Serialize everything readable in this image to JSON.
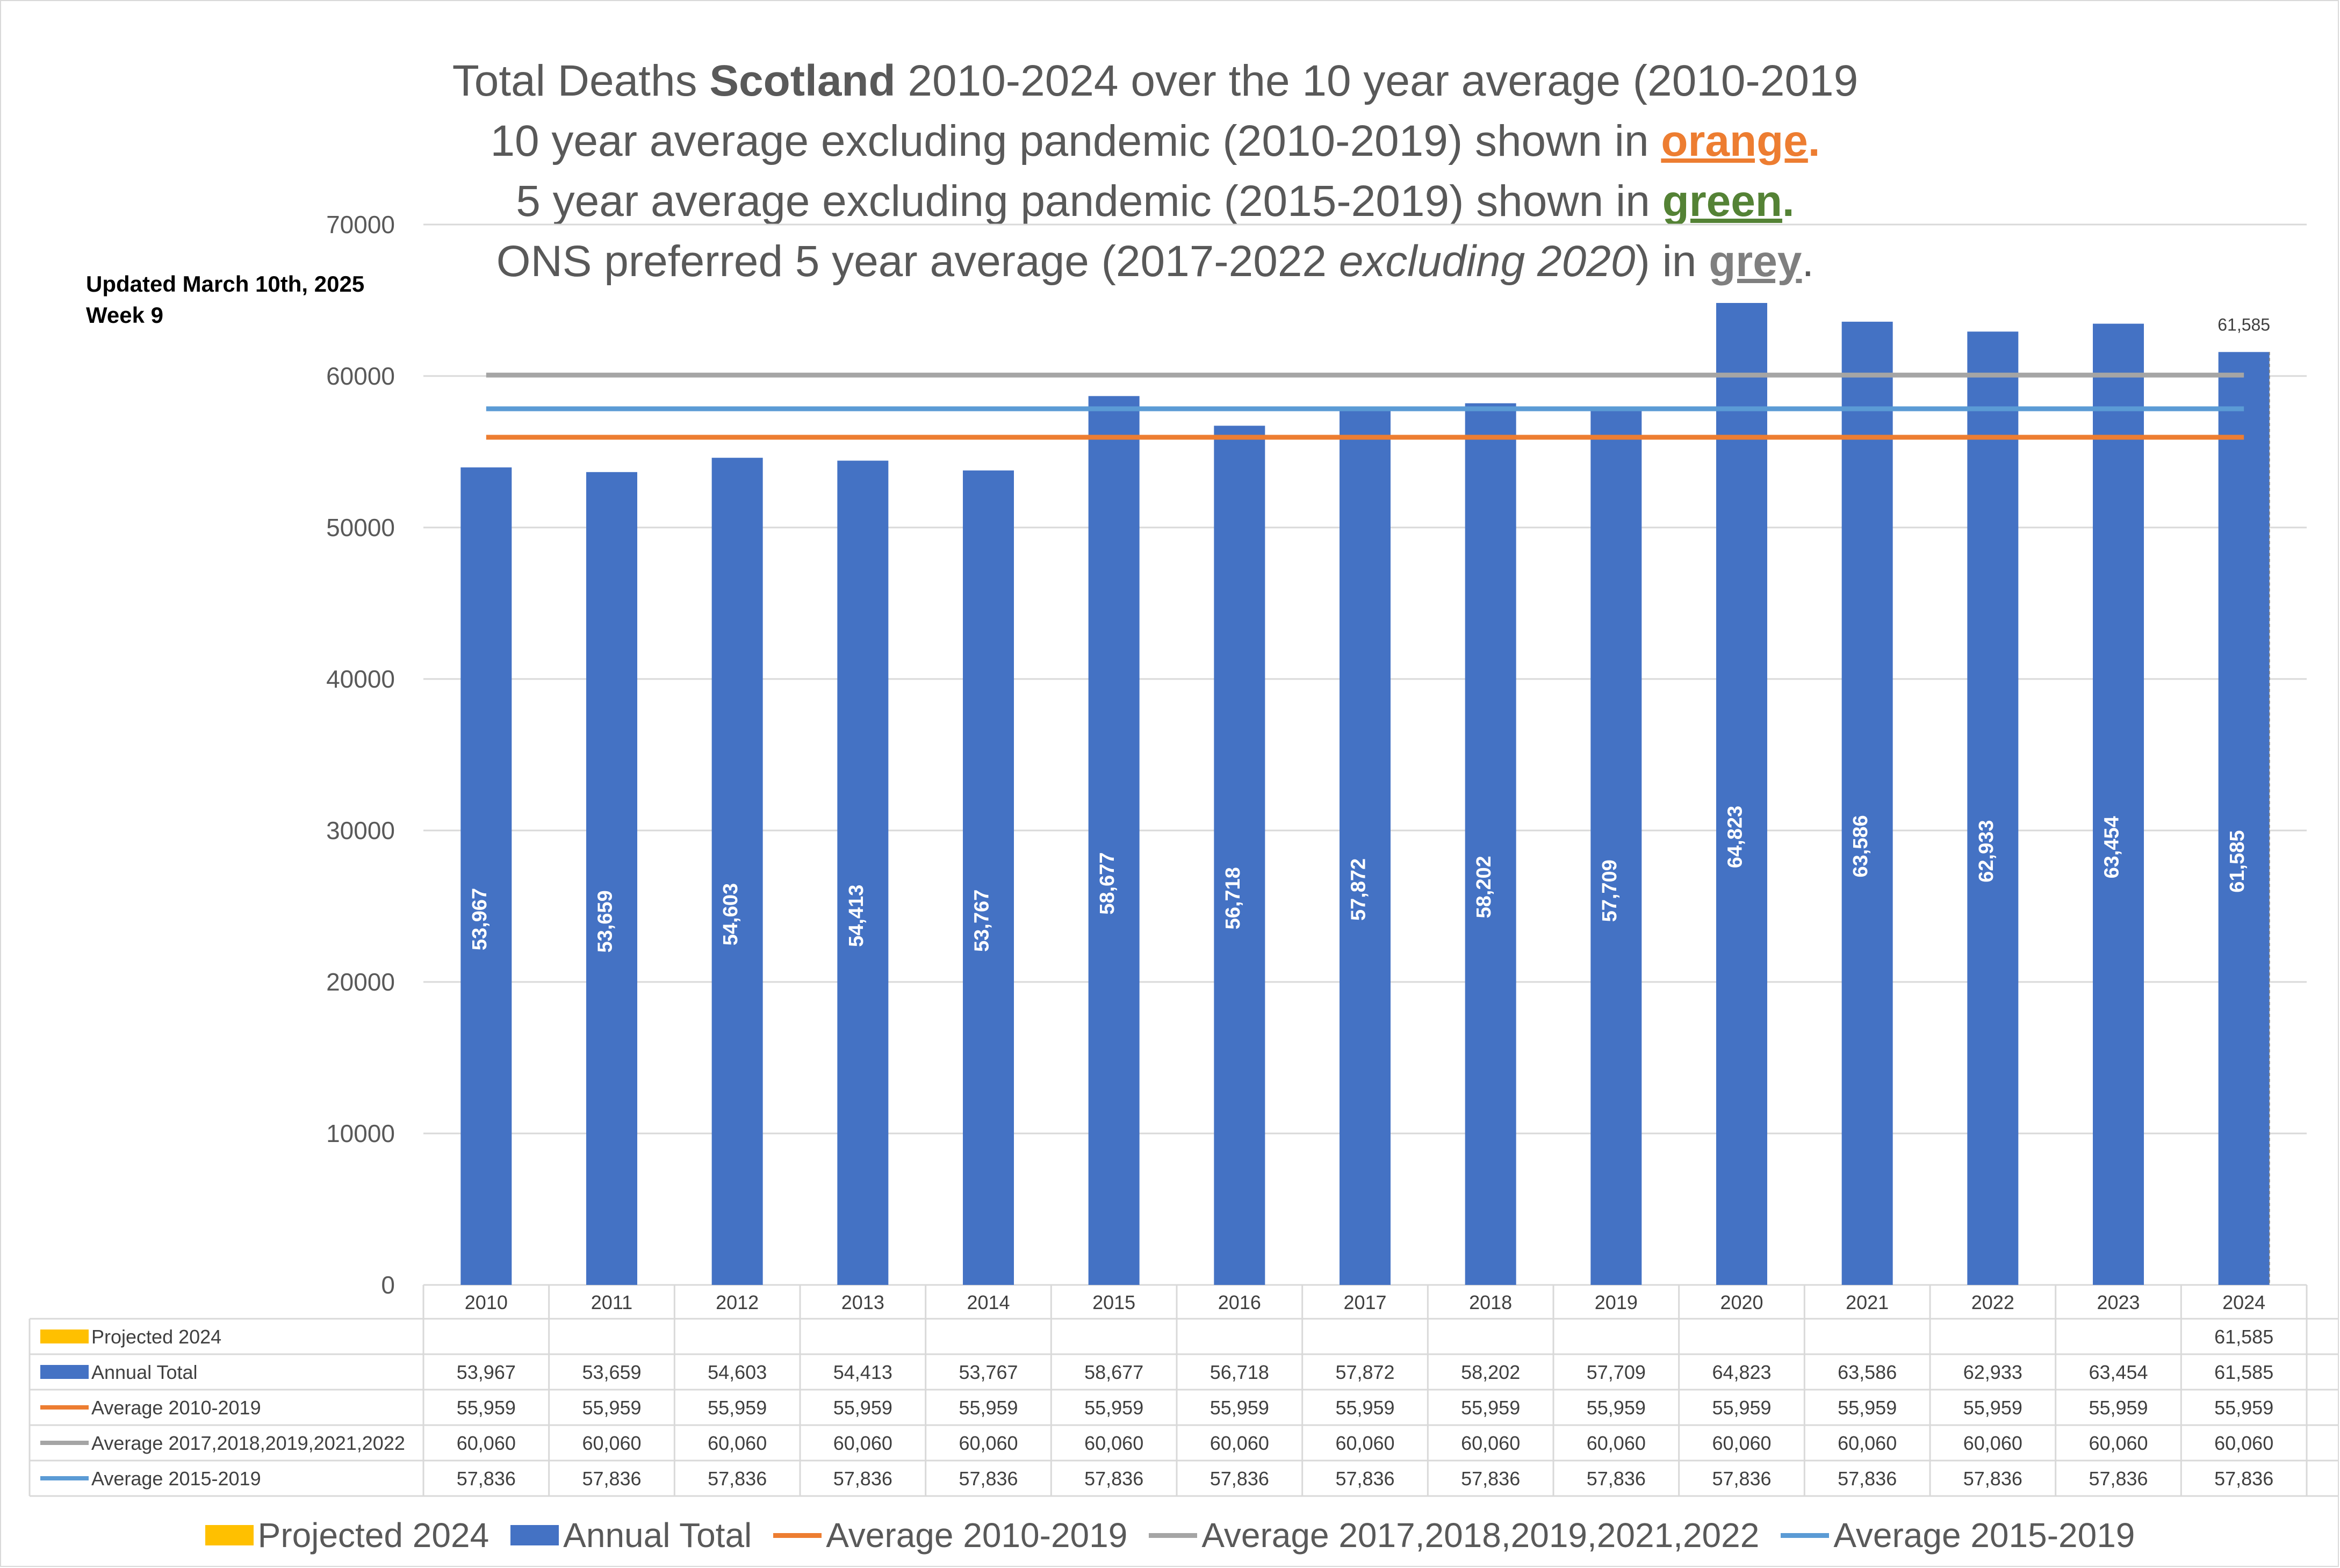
{
  "title": {
    "line1_pre": "Total Deaths ",
    "line1_bold": "Scotland",
    "line1_post": " 2010-2024 over the 10 year average (2010-2019",
    "line2_pre": "10 year average excluding pandemic (2010-2019) shown in ",
    "line2_hl": "orange",
    "line2_dot": ".",
    "line3_pre": "5 year average excluding pandemic (2015-2019) shown in ",
    "line3_hl": "green",
    "line3_dot": ".",
    "line4_pre": "ONS preferred 5 year average (2017-2022 ",
    "line4_ital": "excluding 2020",
    "line4_mid": ") in ",
    "line4_hl": "grey",
    "line4_dot": "."
  },
  "updated_line1": "Updated March 10th, 2025",
  "updated_line2": "Week 9",
  "colors": {
    "projected": "#ffc000",
    "annual": "#4472c4",
    "avg_2010_2019": "#ed7d31",
    "avg_ons": "#a5a5a5",
    "avg_2015_2019": "#5b9bd5",
    "grid": "#d9d9d9",
    "axis_text": "#595959"
  },
  "chart_data": {
    "type": "bar",
    "categories": [
      "2010",
      "2011",
      "2012",
      "2013",
      "2014",
      "2015",
      "2016",
      "2017",
      "2018",
      "2019",
      "2020",
      "2021",
      "2022",
      "2023",
      "2024"
    ],
    "ylim": [
      0,
      70000
    ],
    "y_ticks": [
      0,
      10000,
      20000,
      30000,
      40000,
      50000,
      60000,
      70000
    ],
    "grid": true,
    "legend_position": "bottom",
    "series": [
      {
        "name": "Projected 2024",
        "kind": "bar",
        "color": "#ffc000",
        "values": [
          null,
          null,
          null,
          null,
          null,
          null,
          null,
          null,
          null,
          null,
          null,
          null,
          null,
          null,
          61585
        ],
        "table": [
          "",
          "",
          "",
          "",
          "",
          "",
          "",
          "",
          "",
          "",
          "",
          "",
          "",
          "",
          "61,585"
        ]
      },
      {
        "name": "Annual Total",
        "kind": "bar",
        "color": "#4472c4",
        "values": [
          53967,
          53659,
          54603,
          54413,
          53767,
          58677,
          56718,
          57872,
          58202,
          57709,
          64823,
          63586,
          62933,
          63454,
          61585
        ],
        "table": [
          "53,967",
          "53,659",
          "54,603",
          "54,413",
          "53,767",
          "58,677",
          "56,718",
          "57,872",
          "58,202",
          "57,709",
          "64,823",
          "63,586",
          "62,933",
          "63,454",
          "61,585"
        ]
      },
      {
        "name": "Average 2010-2019",
        "kind": "line",
        "color": "#ed7d31",
        "values": [
          55959,
          55959,
          55959,
          55959,
          55959,
          55959,
          55959,
          55959,
          55959,
          55959,
          55959,
          55959,
          55959,
          55959,
          55959
        ],
        "table": [
          "55,959",
          "55,959",
          "55,959",
          "55,959",
          "55,959",
          "55,959",
          "55,959",
          "55,959",
          "55,959",
          "55,959",
          "55,959",
          "55,959",
          "55,959",
          "55,959",
          "55,959"
        ]
      },
      {
        "name": "Average 2017,2018,2019,2021,2022",
        "kind": "line",
        "color": "#a5a5a5",
        "values": [
          60060,
          60060,
          60060,
          60060,
          60060,
          60060,
          60060,
          60060,
          60060,
          60060,
          60060,
          60060,
          60060,
          60060,
          60060
        ],
        "table": [
          "60,060",
          "60,060",
          "60,060",
          "60,060",
          "60,060",
          "60,060",
          "60,060",
          "60,060",
          "60,060",
          "60,060",
          "60,060",
          "60,060",
          "60,060",
          "60,060",
          "60,060"
        ]
      },
      {
        "name": "Average 2015-2019",
        "kind": "line",
        "color": "#5b9bd5",
        "values": [
          57836,
          57836,
          57836,
          57836,
          57836,
          57836,
          57836,
          57836,
          57836,
          57836,
          57836,
          57836,
          57836,
          57836,
          57836
        ],
        "table": [
          "57,836",
          "57,836",
          "57,836",
          "57,836",
          "57,836",
          "57,836",
          "57,836",
          "57,836",
          "57,836",
          "57,836",
          "57,836",
          "57,836",
          "57,836",
          "57,836",
          "57,836"
        ]
      }
    ],
    "data_labels": [
      "53,967",
      "53,659",
      "54,603",
      "54,413",
      "53,767",
      "58,677",
      "56,718",
      "57,872",
      "58,202",
      "57,709",
      "64,823",
      "63,586",
      "62,933",
      "63,454",
      "61,585"
    ],
    "top_label": "61,585"
  }
}
